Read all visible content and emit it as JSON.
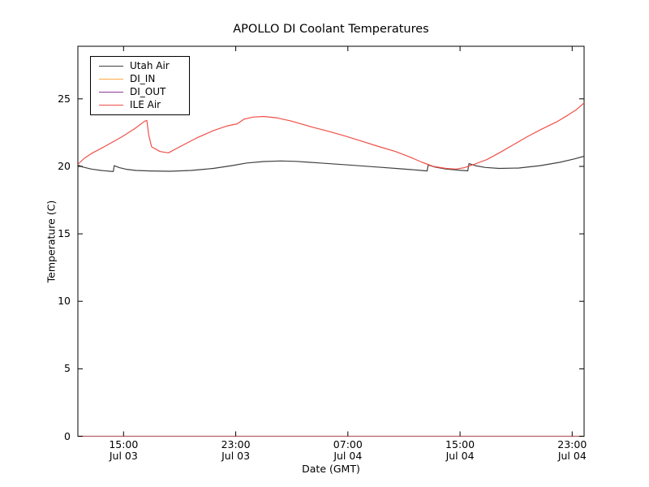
{
  "figure": {
    "title": "APOLLO DI Coolant Temperatures",
    "xlabel": "Date (GMT)",
    "ylabel": "Temperature (C)",
    "background_color": "#ffffff",
    "axes_color": "#000000"
  },
  "chart_data": {
    "type": "line",
    "title": "APOLLO DI Coolant Temperatures",
    "xlabel": "Date (GMT)",
    "ylabel": "Temperature (C)",
    "x_unit": "hours since Jul 03 00:00 GMT",
    "xlim": [
      11.74,
      47.85
    ],
    "ylim": [
      0,
      28.9
    ],
    "grid": false,
    "legend_position": "upper left",
    "yticks": [
      0,
      5,
      10,
      15,
      20,
      25
    ],
    "xticks": [
      {
        "t": 15,
        "time": "15:00",
        "date": "Jul 03"
      },
      {
        "t": 23,
        "time": "23:00",
        "date": "Jul 03"
      },
      {
        "t": 31,
        "time": "07:00",
        "date": "Jul 04"
      },
      {
        "t": 39,
        "time": "15:00",
        "date": "Jul 04"
      },
      {
        "t": 47,
        "time": "23:00",
        "date": "Jul 04"
      }
    ],
    "series": [
      {
        "name": "Utah Air",
        "color": "#404040",
        "opacity": 1,
        "points": [
          [
            11.74,
            20.1
          ],
          [
            12.1,
            19.95
          ],
          [
            12.7,
            19.8
          ],
          [
            13.4,
            19.7
          ],
          [
            14.1,
            19.63
          ],
          [
            14.27,
            19.62
          ],
          [
            14.33,
            20.05
          ],
          [
            14.7,
            19.9
          ],
          [
            15.2,
            19.78
          ],
          [
            15.9,
            19.7
          ],
          [
            16.9,
            19.66
          ],
          [
            18.3,
            19.64
          ],
          [
            19.8,
            19.7
          ],
          [
            21.4,
            19.85
          ],
          [
            22.7,
            20.05
          ],
          [
            23.8,
            20.25
          ],
          [
            25.0,
            20.36
          ],
          [
            26.2,
            20.4
          ],
          [
            27.3,
            20.37
          ],
          [
            29.0,
            20.25
          ],
          [
            31.1,
            20.1
          ],
          [
            33.1,
            19.95
          ],
          [
            34.8,
            19.82
          ],
          [
            36.0,
            19.72
          ],
          [
            36.65,
            19.66
          ],
          [
            36.73,
            20.1
          ],
          [
            37.2,
            19.95
          ],
          [
            38.0,
            19.8
          ],
          [
            38.9,
            19.72
          ],
          [
            39.55,
            19.67
          ],
          [
            39.64,
            20.2
          ],
          [
            40.1,
            20.05
          ],
          [
            40.8,
            19.92
          ],
          [
            41.8,
            19.85
          ],
          [
            43.2,
            19.88
          ],
          [
            44.7,
            20.05
          ],
          [
            46.1,
            20.3
          ],
          [
            47.15,
            20.55
          ],
          [
            47.85,
            20.75
          ]
        ]
      },
      {
        "name": "DI_IN",
        "color": "#ffa843",
        "opacity": 0.95,
        "points": [
          [
            11.74,
            0
          ],
          [
            47.85,
            0
          ]
        ]
      },
      {
        "name": "DI_OUT",
        "color": "#8d3a96",
        "opacity": 0.6,
        "points": [
          [
            11.74,
            0
          ],
          [
            47.85,
            0
          ]
        ]
      },
      {
        "name": "ILE Air",
        "color": "#ef5048",
        "opacity": 1,
        "points": [
          [
            11.74,
            20.15
          ],
          [
            12.2,
            20.6
          ],
          [
            12.7,
            20.95
          ],
          [
            13.7,
            21.5
          ],
          [
            14.9,
            22.2
          ],
          [
            15.8,
            22.8
          ],
          [
            16.5,
            23.35
          ],
          [
            16.66,
            23.4
          ],
          [
            16.8,
            22.3
          ],
          [
            17.0,
            21.45
          ],
          [
            17.6,
            21.1
          ],
          [
            18.2,
            21.0
          ],
          [
            19.0,
            21.45
          ],
          [
            20.2,
            22.1
          ],
          [
            21.4,
            22.65
          ],
          [
            22.4,
            23.0
          ],
          [
            23.1,
            23.15
          ],
          [
            23.6,
            23.5
          ],
          [
            24.2,
            23.65
          ],
          [
            25.0,
            23.7
          ],
          [
            25.9,
            23.6
          ],
          [
            27.0,
            23.35
          ],
          [
            28.5,
            22.9
          ],
          [
            29.6,
            22.6
          ],
          [
            30.8,
            22.25
          ],
          [
            31.9,
            21.9
          ],
          [
            33.1,
            21.5
          ],
          [
            34.4,
            21.1
          ],
          [
            35.4,
            20.7
          ],
          [
            36.3,
            20.3
          ],
          [
            37.1,
            20.0
          ],
          [
            38.0,
            19.85
          ],
          [
            38.7,
            19.8
          ],
          [
            39.3,
            19.9
          ],
          [
            40.0,
            20.15
          ],
          [
            40.9,
            20.5
          ],
          [
            41.8,
            21.0
          ],
          [
            42.8,
            21.6
          ],
          [
            43.8,
            22.2
          ],
          [
            44.8,
            22.75
          ],
          [
            45.9,
            23.3
          ],
          [
            46.7,
            23.8
          ],
          [
            47.3,
            24.2
          ],
          [
            47.85,
            24.7
          ]
        ]
      }
    ]
  }
}
